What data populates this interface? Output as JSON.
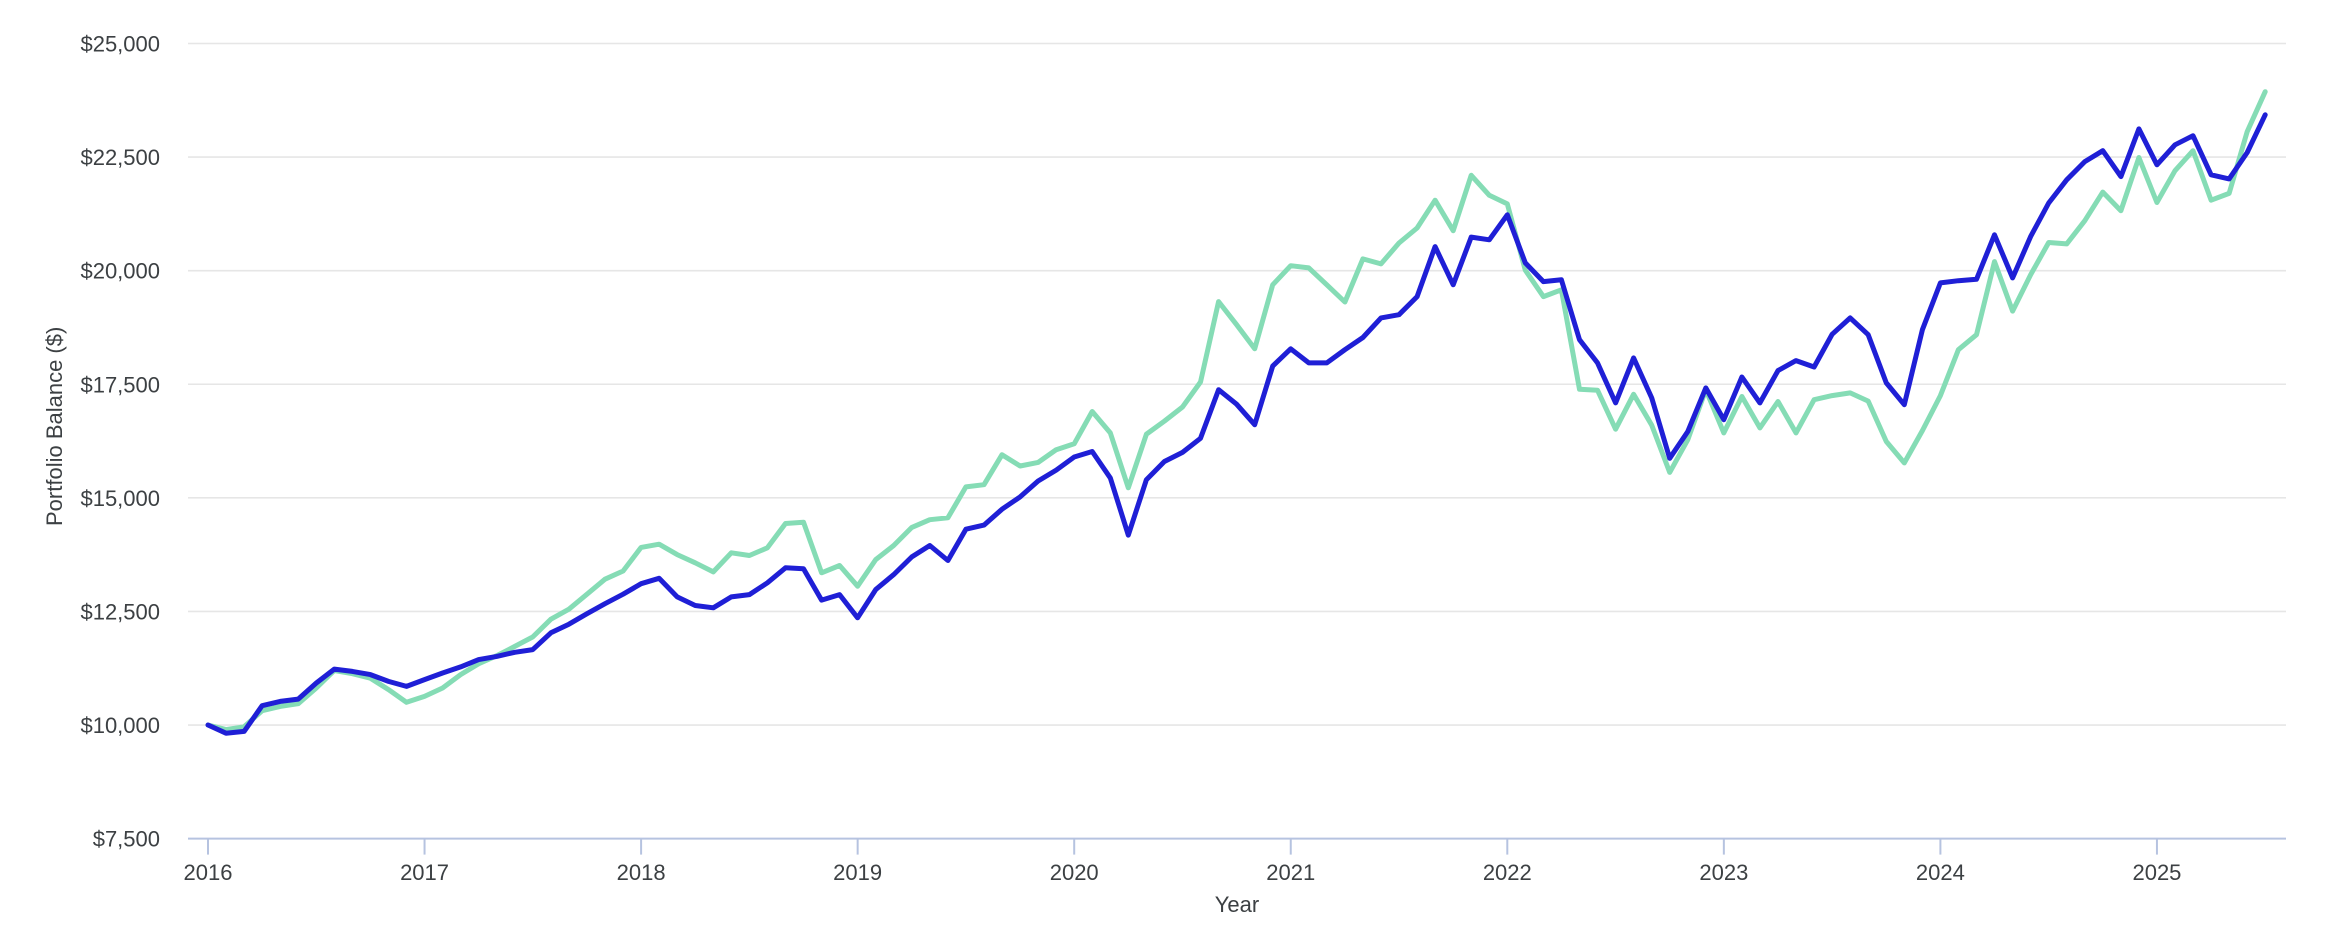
{
  "chart_data": {
    "type": "line",
    "title": "",
    "xlabel": "Year",
    "ylabel": "Portfolio Balance ($)",
    "x_unit": "monthly",
    "x_start": 2016.0,
    "x_step_years": 0.0833333,
    "xlim": [
      2015.91,
      2025.6
    ],
    "ylim": [
      7500,
      25000
    ],
    "xticks": [
      2016,
      2017,
      2018,
      2019,
      2020,
      2021,
      2022,
      2023,
      2024,
      2025
    ],
    "yticks": [
      7500,
      10000,
      12500,
      15000,
      17500,
      20000,
      22500,
      25000
    ],
    "grid": "horizontal",
    "legend_position": "none",
    "series": [
      {
        "name": "green-portfolio",
        "color": "#85dcb5",
        "values": [
          10000,
          9900,
          9960,
          10315,
          10410,
          10470,
          10815,
          11200,
          11130,
          11030,
          10780,
          10500,
          10630,
          10815,
          11110,
          11350,
          11525,
          11730,
          11940,
          12330,
          12550,
          12880,
          13210,
          13390,
          13910,
          13980,
          13750,
          13570,
          13370,
          13790,
          13730,
          13900,
          14435,
          14465,
          13350,
          13510,
          13055,
          13640,
          13950,
          14350,
          14520,
          14560,
          15240,
          15290,
          15950,
          15700,
          15780,
          16060,
          16190,
          16900,
          16430,
          15220,
          16400,
          16690,
          17000,
          17550,
          19320,
          18810,
          18280,
          19690,
          20110,
          20060,
          19690,
          19310,
          20260,
          20150,
          20610,
          20940,
          21550,
          20880,
          22100,
          21660,
          21470,
          20010,
          19430,
          19580,
          17390,
          17370,
          16510,
          17280,
          16600,
          15560,
          16280,
          17380,
          16430,
          17230,
          16540,
          17120,
          16430,
          17160,
          17250,
          17310,
          17130,
          16240,
          15770,
          16480,
          17250,
          18260,
          18590,
          20200,
          19110,
          19910,
          20620,
          20590,
          21100,
          21730,
          21320,
          22490,
          21500,
          22200,
          22640,
          21550,
          21700,
          23060,
          23940
        ]
      },
      {
        "name": "blue-portfolio",
        "color": "#1f1fd6",
        "values": [
          10000,
          9820,
          9860,
          10425,
          10520,
          10570,
          10925,
          11230,
          11180,
          11110,
          10960,
          10850,
          11000,
          11145,
          11280,
          11440,
          11510,
          11600,
          11660,
          12030,
          12220,
          12450,
          12670,
          12880,
          13110,
          13230,
          12820,
          12630,
          12580,
          12820,
          12870,
          13130,
          13460,
          13440,
          12750,
          12870,
          12360,
          12980,
          13310,
          13700,
          13950,
          13620,
          14310,
          14400,
          14750,
          15020,
          15370,
          15610,
          15900,
          16020,
          15440,
          14180,
          15400,
          15800,
          16000,
          16310,
          17380,
          17060,
          16610,
          17900,
          18280,
          17970,
          17970,
          18260,
          18530,
          18960,
          19030,
          19430,
          20530,
          19690,
          20740,
          20680,
          21230,
          20170,
          19760,
          19800,
          18480,
          17970,
          17090,
          18080,
          17200,
          15870,
          16460,
          17420,
          16720,
          17660,
          17090,
          17800,
          18020,
          17880,
          18600,
          18960,
          18590,
          17530,
          17050,
          18700,
          19730,
          19780,
          19810,
          20790,
          19840,
          20750,
          21490,
          22000,
          22400,
          22640,
          22070,
          23120,
          22330,
          22770,
          22970,
          22110,
          22020,
          22600,
          23430
        ]
      }
    ]
  },
  "axes": {
    "y_tick_labels": [
      "$7,500",
      "$10,000",
      "$12,500",
      "$15,000",
      "$17,500",
      "$20,000",
      "$22,500",
      "$25,000"
    ],
    "x_tick_labels": [
      "2016",
      "2017",
      "2018",
      "2019",
      "2020",
      "2021",
      "2022",
      "2023",
      "2024",
      "2025"
    ],
    "y_axis_title": "Portfolio Balance ($)",
    "x_axis_title": "Year"
  },
  "colors": {
    "background": "#ffffff",
    "gridline": "#e6e6e6",
    "axis_line": "#b6c3e0",
    "tick_text": "#3c4043",
    "series_green": "#85dcb5",
    "series_blue": "#1f1fd6"
  }
}
